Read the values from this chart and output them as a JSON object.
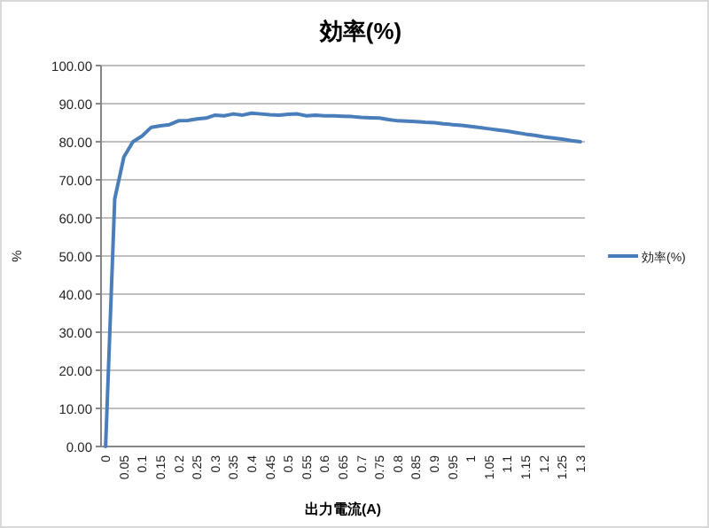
{
  "chart_data": {
    "type": "line",
    "title": "効率(%)",
    "xlabel": "出力電流(A)",
    "ylabel": "%",
    "categories": [
      "0",
      null,
      "0.05",
      null,
      "0.1",
      null,
      "0.15",
      null,
      "0.2",
      null,
      "0.25",
      null,
      "0.3",
      null,
      "0.35",
      null,
      "0.4",
      null,
      "0.45",
      null,
      "0.5",
      null,
      "0.55",
      null,
      "0.6",
      null,
      "0.65",
      null,
      "0.7",
      null,
      "0.75",
      null,
      "0.8",
      null,
      "0.85",
      null,
      "0.9",
      null,
      "0.95",
      null,
      "1",
      null,
      "1.05",
      null,
      "1.1",
      null,
      "1.15",
      null,
      "1.2",
      null,
      "1.25",
      null,
      "1.3"
    ],
    "series": [
      {
        "name": "効率(%)",
        "color": "#4a7ebb",
        "values": [
          0,
          65,
          76,
          80,
          81.5,
          83.8,
          84.2,
          84.5,
          85.5,
          85.6,
          86,
          86.2,
          87,
          86.8,
          87.3,
          87,
          87.5,
          87.3,
          87.1,
          87,
          87.2,
          87.3,
          86.8,
          87,
          86.8,
          86.8,
          86.7,
          86.6,
          86.4,
          86.3,
          86.2,
          85.8,
          85.5,
          85.4,
          85.3,
          85.1,
          85,
          84.7,
          84.5,
          84.3,
          84,
          83.7,
          83.4,
          83.1,
          82.8,
          82.4,
          82,
          81.7,
          81.3,
          81,
          80.7,
          80.3,
          80
        ]
      }
    ],
    "ylim": [
      0,
      100
    ],
    "yticks": [
      {
        "value": 0,
        "label": "0.00"
      },
      {
        "value": 10,
        "label": "10.00"
      },
      {
        "value": 20,
        "label": "20.00"
      },
      {
        "value": 30,
        "label": "30.00"
      },
      {
        "value": 40,
        "label": "40.00"
      },
      {
        "value": 50,
        "label": "50.00"
      },
      {
        "value": 60,
        "label": "60.00"
      },
      {
        "value": 70,
        "label": "70.00"
      },
      {
        "value": 80,
        "label": "80.00"
      },
      {
        "value": 90,
        "label": "90.00"
      },
      {
        "value": 100,
        "label": "100.00"
      }
    ],
    "grid": "y",
    "legend": "right"
  }
}
